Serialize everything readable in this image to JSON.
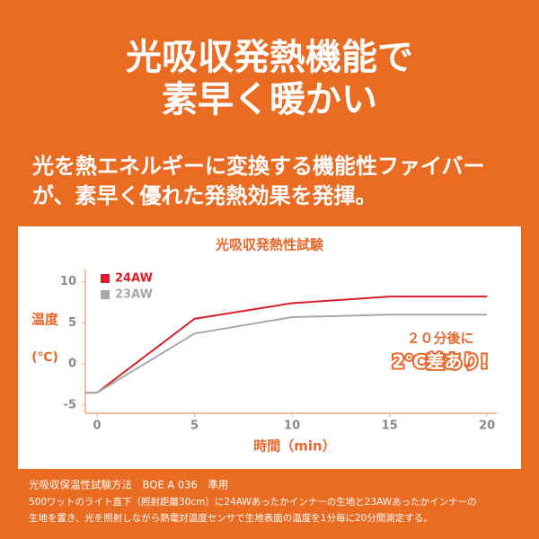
{
  "header": {
    "title_lines": [
      "光吸収発熱機能で",
      "素早く暖かい"
    ],
    "subtitle_lines": [
      "光を熱エネルギーに変換する機能性ファイバー",
      "が、素早く優れた発熱効果を発揮。"
    ]
  },
  "chart_data": {
    "type": "line",
    "title": "光吸収発熱性試験",
    "x_label": "時間（min）",
    "y_label_lines": [
      "温度",
      "(℃)"
    ],
    "x": [
      -0.6,
      0,
      5,
      10,
      15,
      20
    ],
    "series": [
      {
        "name": "24AW",
        "color": "#d9202a",
        "values": [
          -3.5,
          -3.5,
          5.5,
          7.4,
          8.2,
          8.2
        ]
      },
      {
        "name": "23AW",
        "color": "#a8a8a8",
        "values": [
          -3.5,
          -3.5,
          3.7,
          5.7,
          6,
          6
        ]
      }
    ],
    "xlim": [
      -0.6,
      20.5
    ],
    "xticks": [
      0,
      5,
      10,
      15,
      20
    ],
    "ylim": [
      -6,
      11.5
    ],
    "yticks": [
      -5,
      0,
      5,
      10
    ],
    "annotations": [
      "２０分後に",
      "2℃差あり!"
    ],
    "grid": false
  },
  "footer": {
    "lines": [
      "光吸収保温性試験方法　BQE A 036　準用",
      "500ワットのライト直下（照射距離30cm）に24AWあったかインナーの生地と23AWあったかインナーの",
      "生地を置き、光を照射しながら熱電対温度センサで生地表面の温度を1分毎に20分間測定する。"
    ]
  }
}
